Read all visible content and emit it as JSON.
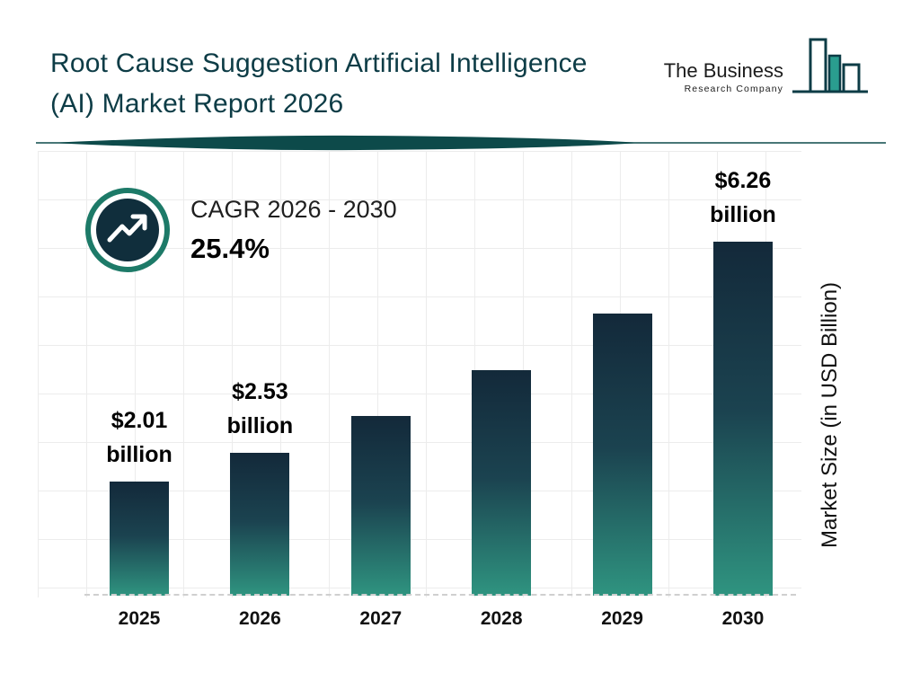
{
  "header": {
    "title": "Root Cause Suggestion Artificial Intelligence (AI) Market Report 2026",
    "logo": {
      "line1": "The Business",
      "line2": "Research Company"
    }
  },
  "cagr": {
    "label": "CAGR 2026 - 2030",
    "value": "25.4%"
  },
  "chart_data": {
    "type": "bar",
    "title": "Root Cause Suggestion Artificial Intelligence (AI) Market Report 2026",
    "categories": [
      "2025",
      "2026",
      "2027",
      "2028",
      "2029",
      "2030"
    ],
    "values": [
      2.01,
      2.53,
      3.17,
      3.98,
      4.99,
      6.26
    ],
    "bar_labels": [
      "$2.01 billion",
      "$2.53 billion",
      null,
      null,
      null,
      "$6.26 billion"
    ],
    "unit": "USD Billion",
    "xlabel": "",
    "ylabel": "Market Size (in USD Billion)",
    "ylim": [
      0,
      7
    ],
    "grid": true,
    "legend": false,
    "colors": {
      "bar_gradient_top": "#13293a",
      "bar_gradient_bottom": "#2f9480",
      "accent_teal": "#1d7a68",
      "dark_navy": "#0d3c46"
    }
  }
}
